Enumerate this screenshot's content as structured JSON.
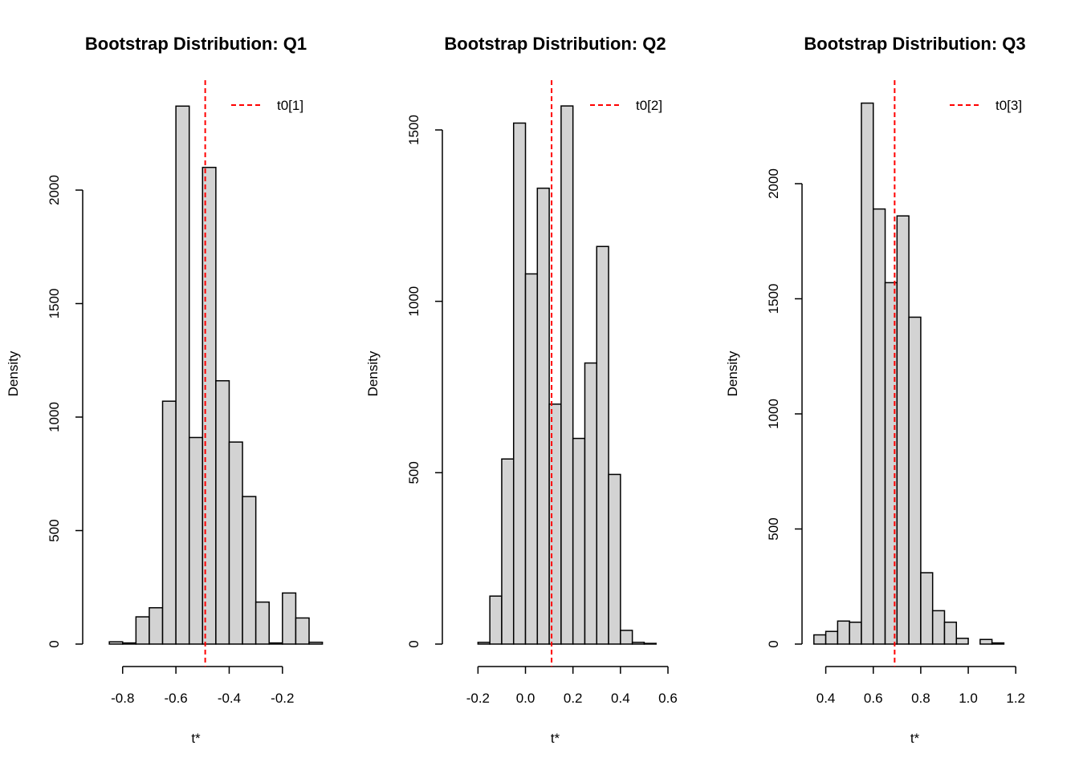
{
  "colors": {
    "bar_fill": "#d3d3d3",
    "bar_stroke": "#000000",
    "reference_line": "#ff0000"
  },
  "chart_data": [
    {
      "type": "bar",
      "title": "Bootstrap Distribution: Q1",
      "xlabel": "t*",
      "ylabel": "Density",
      "xlim": [
        -0.95,
        -0.1
      ],
      "ylim": [
        0,
        2000
      ],
      "xticks": [
        -0.8,
        -0.6,
        -0.4,
        -0.2
      ],
      "xtick_labels": [
        "-0.8",
        "-0.6",
        "-0.4",
        "-0.2"
      ],
      "yticks": [
        0,
        500,
        1000,
        1500,
        2000
      ],
      "ytick_labels": [
        "0",
        "500",
        "1000",
        "1500",
        "2000"
      ],
      "bin_width": 0.05,
      "bin_start": -0.9,
      "values": [
        0,
        10,
        5,
        120,
        160,
        1070,
        2370,
        910,
        2100,
        1160,
        890,
        650,
        185,
        5,
        225,
        115,
        8
      ],
      "reference_value": -0.49,
      "legend": {
        "label": "t0[1]",
        "position": "top-right"
      }
    },
    {
      "type": "bar",
      "title": "Bootstrap Distribution: Q2",
      "xlabel": "t*",
      "ylabel": "Density",
      "xlim": [
        -0.35,
        0.6
      ],
      "ylim": [
        0,
        1500
      ],
      "xticks": [
        -0.2,
        0.0,
        0.2,
        0.4,
        0.6
      ],
      "xtick_labels": [
        "-0.2",
        "0.0",
        "0.2",
        "0.4",
        "0.6"
      ],
      "yticks": [
        0,
        500,
        1000,
        1500
      ],
      "ytick_labels": [
        "0",
        "500",
        "1000",
        "1500"
      ],
      "bin_width": 0.05,
      "bin_start": -0.3,
      "values": [
        0,
        0,
        5,
        140,
        540,
        1520,
        1080,
        1330,
        700,
        1570,
        600,
        820,
        1160,
        495,
        40,
        5,
        2
      ],
      "reference_value": 0.11,
      "legend": {
        "label": "t0[2]",
        "position": "top-right"
      }
    },
    {
      "type": "bar",
      "title": "Bootstrap Distribution: Q3",
      "xlabel": "t*",
      "ylabel": "Density",
      "xlim": [
        0.3,
        1.25
      ],
      "ylim": [
        0,
        2000
      ],
      "xticks": [
        0.4,
        0.6,
        0.8,
        1.0,
        1.2
      ],
      "xtick_labels": [
        "0.4",
        "0.6",
        "0.8",
        "1.0",
        "1.2"
      ],
      "yticks": [
        0,
        500,
        1000,
        1500,
        2000
      ],
      "ytick_labels": [
        "0",
        "500",
        "1000",
        "1500",
        "2000"
      ],
      "bin_width": 0.05,
      "bin_start": 0.35,
      "values": [
        40,
        55,
        100,
        95,
        2350,
        1890,
        1570,
        1860,
        1420,
        310,
        145,
        95,
        25,
        0,
        20,
        5,
        0
      ],
      "reference_value": 0.69,
      "legend": {
        "label": "t0[3]",
        "position": "top-right"
      }
    }
  ]
}
